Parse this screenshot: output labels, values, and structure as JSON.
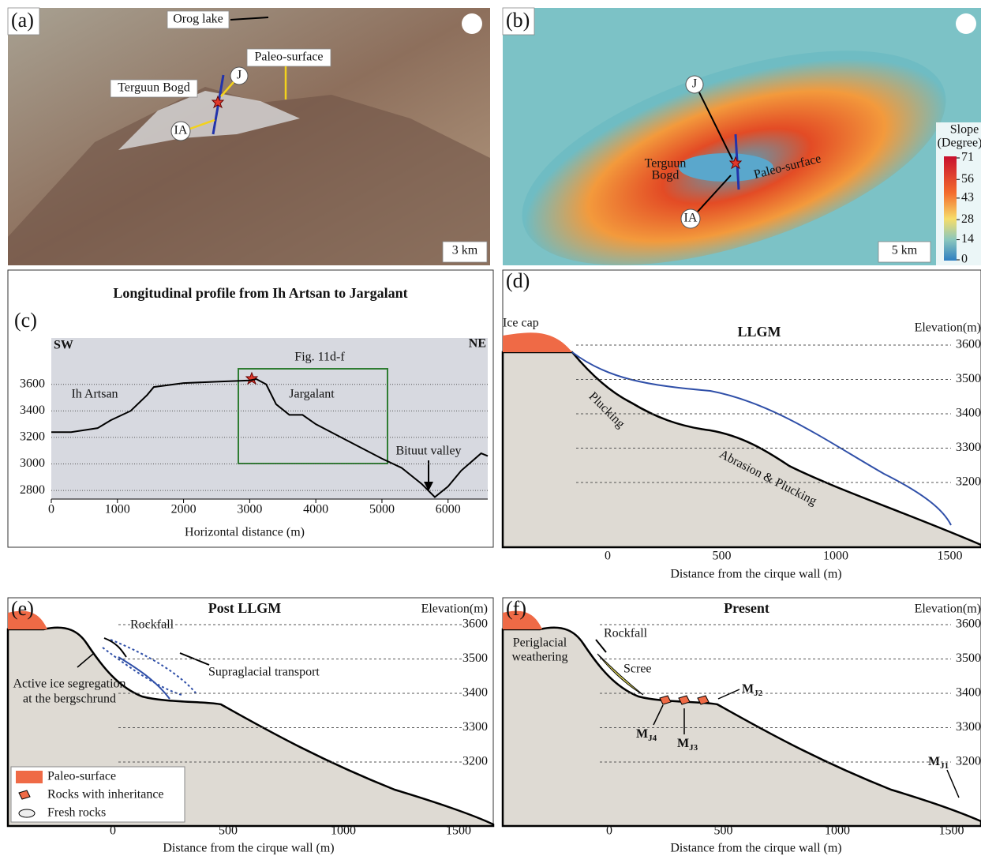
{
  "panels": {
    "a": {
      "label": "(a)",
      "orog_lake": "Orog lake",
      "paleo_surface": "Paleo-surface",
      "terguun_bogd": "Terguun Bogd",
      "j": "J",
      "ia": "IA",
      "scale": "3 km"
    },
    "b": {
      "label": "(b)",
      "j": "J",
      "terguun": "Terguun",
      "bogd": "Bogd",
      "paleo_surface": "Paleo-surface",
      "ia": "IA",
      "slope_title": "Slope",
      "slope_unit": "(Degree)",
      "slope_ticks": [
        71,
        56,
        43,
        28,
        14,
        0
      ],
      "scale": "5 km"
    },
    "d": {
      "label": "(d)",
      "title": "LLGM",
      "ice_cap": "Ice cap",
      "elev_title": "Elevation(m)",
      "elev_ticks": [
        3600,
        3500,
        3400,
        3300,
        3200
      ],
      "dist_ticks": [
        0,
        500,
        1000,
        1500
      ],
      "x_title": "Distance from the cirque wall (m)",
      "plucking": "Plucking",
      "abrasion": "Abrasion & Plucking"
    },
    "e": {
      "label": "(e)",
      "title": "Post LLGM",
      "elev_title": "Elevation(m)",
      "elev_ticks": [
        3600,
        3500,
        3400,
        3300,
        3200
      ],
      "dist_ticks": [
        0,
        500,
        1000,
        1500
      ],
      "x_title": "Distance from the cirque wall (m)",
      "rockfall": "Rockfall",
      "supraglacial": "Supraglacial transport",
      "segregation": [
        "Active ice segregation",
        "at the bergschrund"
      ],
      "legend": [
        "Paleo-surface",
        "Rocks with inheritance",
        "Fresh rocks"
      ]
    },
    "f": {
      "label": "(f)",
      "title": "Present",
      "elev_title": "Elevation(m)",
      "elev_ticks": [
        3600,
        3500,
        3400,
        3300,
        3200
      ],
      "dist_ticks": [
        0,
        500,
        1000,
        1500
      ],
      "x_title": "Distance from the cirque wall (m)",
      "rockfall": "Rockfall",
      "periglacial": [
        "Periglacial",
        "weathering"
      ],
      "scree": "Scree",
      "moraines": [
        {
          "main": "M",
          "sub": "J2"
        },
        {
          "main": "M",
          "sub": "J4"
        },
        {
          "main": "M",
          "sub": "J3"
        },
        {
          "main": "M",
          "sub": "J1"
        }
      ]
    }
  },
  "chart_data": {
    "type": "line",
    "label": "(c)",
    "title": "Longitudinal profile from Ih Artsan to Jargalant",
    "xlabel": "Horizontal distance (m)",
    "color": "#000000",
    "x": [
      0,
      300,
      700,
      900,
      1200,
      1450,
      1550,
      2000,
      2500,
      3000,
      3100,
      3250,
      3400,
      3600,
      3800,
      4000,
      4500,
      5000,
      5300,
      5600,
      5800,
      6000,
      6200,
      6500,
      6600
    ],
    "values": [
      3240,
      3240,
      3270,
      3330,
      3400,
      3520,
      3580,
      3610,
      3620,
      3630,
      3640,
      3600,
      3450,
      3370,
      3370,
      3300,
      3170,
      3040,
      2970,
      2850,
      2750,
      2830,
      2950,
      3080,
      3060
    ],
    "xlim": [
      0,
      6600
    ],
    "ylim": [
      2735,
      3950
    ],
    "xticks": [
      0,
      1000,
      2000,
      3000,
      4000,
      5000,
      6000
    ],
    "yticks": [
      2800,
      3000,
      3200,
      3400,
      3600
    ],
    "grid": true,
    "annotations": {
      "sw": "SW",
      "ne": "NE",
      "fig": "Fig. 11d-f",
      "ih_artsan": "Ih Artsan",
      "jargalant": "Jargalant",
      "bituut": "Bituut valley"
    }
  }
}
